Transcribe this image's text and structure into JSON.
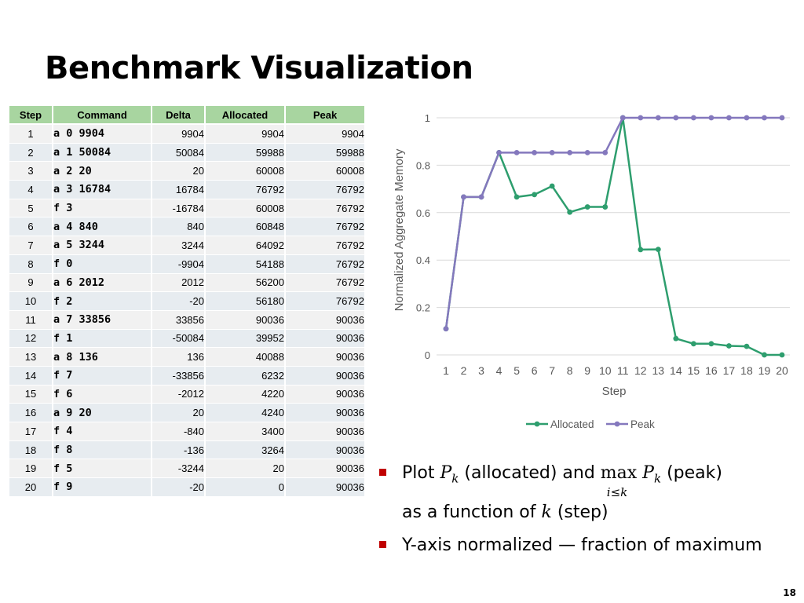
{
  "title": "Benchmark Visualization",
  "table": {
    "headers": [
      "Step",
      "Command",
      "Delta",
      "Allocated",
      "Peak"
    ],
    "rows": [
      [
        "1",
        "a 0 9904",
        "9904",
        "9904",
        "9904"
      ],
      [
        "2",
        "a 1 50084",
        "50084",
        "59988",
        "59988"
      ],
      [
        "3",
        "a 2 20",
        "20",
        "60008",
        "60008"
      ],
      [
        "4",
        "a 3 16784",
        "16784",
        "76792",
        "76792"
      ],
      [
        "5",
        "f 3",
        "-16784",
        "60008",
        "76792"
      ],
      [
        "6",
        "a 4 840",
        "840",
        "60848",
        "76792"
      ],
      [
        "7",
        "a 5 3244",
        "3244",
        "64092",
        "76792"
      ],
      [
        "8",
        "f 0",
        "-9904",
        "54188",
        "76792"
      ],
      [
        "9",
        "a 6 2012",
        "2012",
        "56200",
        "76792"
      ],
      [
        "10",
        "f 2",
        "-20",
        "56180",
        "76792"
      ],
      [
        "11",
        "a 7 33856",
        "33856",
        "90036",
        "90036"
      ],
      [
        "12",
        "f 1",
        "-50084",
        "39952",
        "90036"
      ],
      [
        "13",
        "a 8 136",
        "136",
        "40088",
        "90036"
      ],
      [
        "14",
        "f 7",
        "-33856",
        "6232",
        "90036"
      ],
      [
        "15",
        "f 6",
        "-2012",
        "4220",
        "90036"
      ],
      [
        "16",
        "a 9 20",
        "20",
        "4240",
        "90036"
      ],
      [
        "17",
        "f 4",
        "-840",
        "3400",
        "90036"
      ],
      [
        "18",
        "f 8",
        "-136",
        "3264",
        "90036"
      ],
      [
        "19",
        "f 5",
        "-3244",
        "20",
        "90036"
      ],
      [
        "20",
        "f 9",
        "-20",
        "0",
        "90036"
      ]
    ]
  },
  "chart_data": {
    "type": "line",
    "title": "",
    "xlabel": "Step",
    "ylabel": "Normalized Aggregate Memory",
    "categories": [
      "1",
      "2",
      "3",
      "4",
      "5",
      "6",
      "7",
      "8",
      "9",
      "10",
      "11",
      "12",
      "13",
      "14",
      "15",
      "16",
      "17",
      "18",
      "19",
      "20"
    ],
    "ylim": [
      0,
      1
    ],
    "yticks": [
      "0",
      "0.2",
      "0.4",
      "0.6",
      "0.8",
      "1"
    ],
    "grid": true,
    "legend": "bottom",
    "series": [
      {
        "name": "Allocated",
        "color": "#2e9e6e",
        "values": [
          0.11,
          0.666,
          0.666,
          0.853,
          0.666,
          0.676,
          0.712,
          0.602,
          0.624,
          0.624,
          1.0,
          0.444,
          0.445,
          0.069,
          0.047,
          0.047,
          0.038,
          0.036,
          0.0002,
          0.0
        ]
      },
      {
        "name": "Peak",
        "color": "#8478bd",
        "values": [
          0.11,
          0.666,
          0.666,
          0.853,
          0.853,
          0.853,
          0.853,
          0.853,
          0.853,
          0.853,
          1.0,
          1.0,
          1.0,
          1.0,
          1.0,
          1.0,
          1.0,
          1.0,
          1.0,
          1.0
        ]
      }
    ]
  },
  "bullets": {
    "b1_pre": "Plot ",
    "b1_pk": "P",
    "b1_k": "k",
    "b1_mid": " (allocated) and ",
    "b1_max": "max",
    "b1_sub": "i≤k",
    "b1_pk2": "P",
    "b1_k2": "k",
    "b1_post": " (peak)",
    "b1_line2_pre": "as a function of ",
    "b1_line2_k": "k",
    "b1_line2_post": " (step)",
    "b2": "Y-axis normalized — fraction of maximum"
  },
  "page_number": "18",
  "colors": {
    "header_green": "#a8d5a0",
    "bullet_red": "#c00000"
  }
}
